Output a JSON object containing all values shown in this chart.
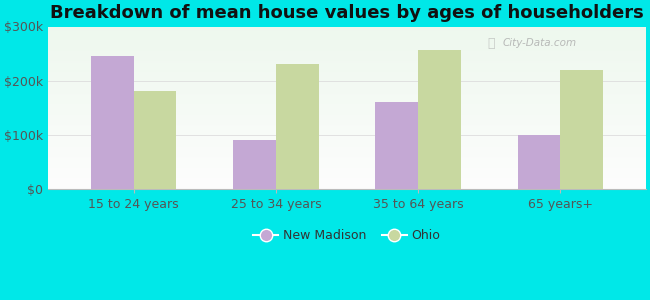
{
  "title": "Breakdown of mean house values by ages of householders",
  "categories": [
    "15 to 24 years",
    "25 to 34 years",
    "35 to 64 years",
    "65 years+"
  ],
  "new_madison": [
    245000,
    90000,
    160000,
    100000
  ],
  "ohio": [
    180000,
    230000,
    257000,
    220000
  ],
  "bar_color_nm": "#c4a8d4",
  "bar_color_ohio": "#c8d8a0",
  "background_color": "#00e8e8",
  "ylim": [
    0,
    300000
  ],
  "yticks": [
    0,
    100000,
    200000,
    300000
  ],
  "ytick_labels": [
    "$0",
    "$100k",
    "$200k",
    "$300k"
  ],
  "legend_labels": [
    "New Madison",
    "Ohio"
  ],
  "title_fontsize": 13,
  "tick_fontsize": 9,
  "legend_fontsize": 9,
  "watermark_text": "City-Data.com"
}
